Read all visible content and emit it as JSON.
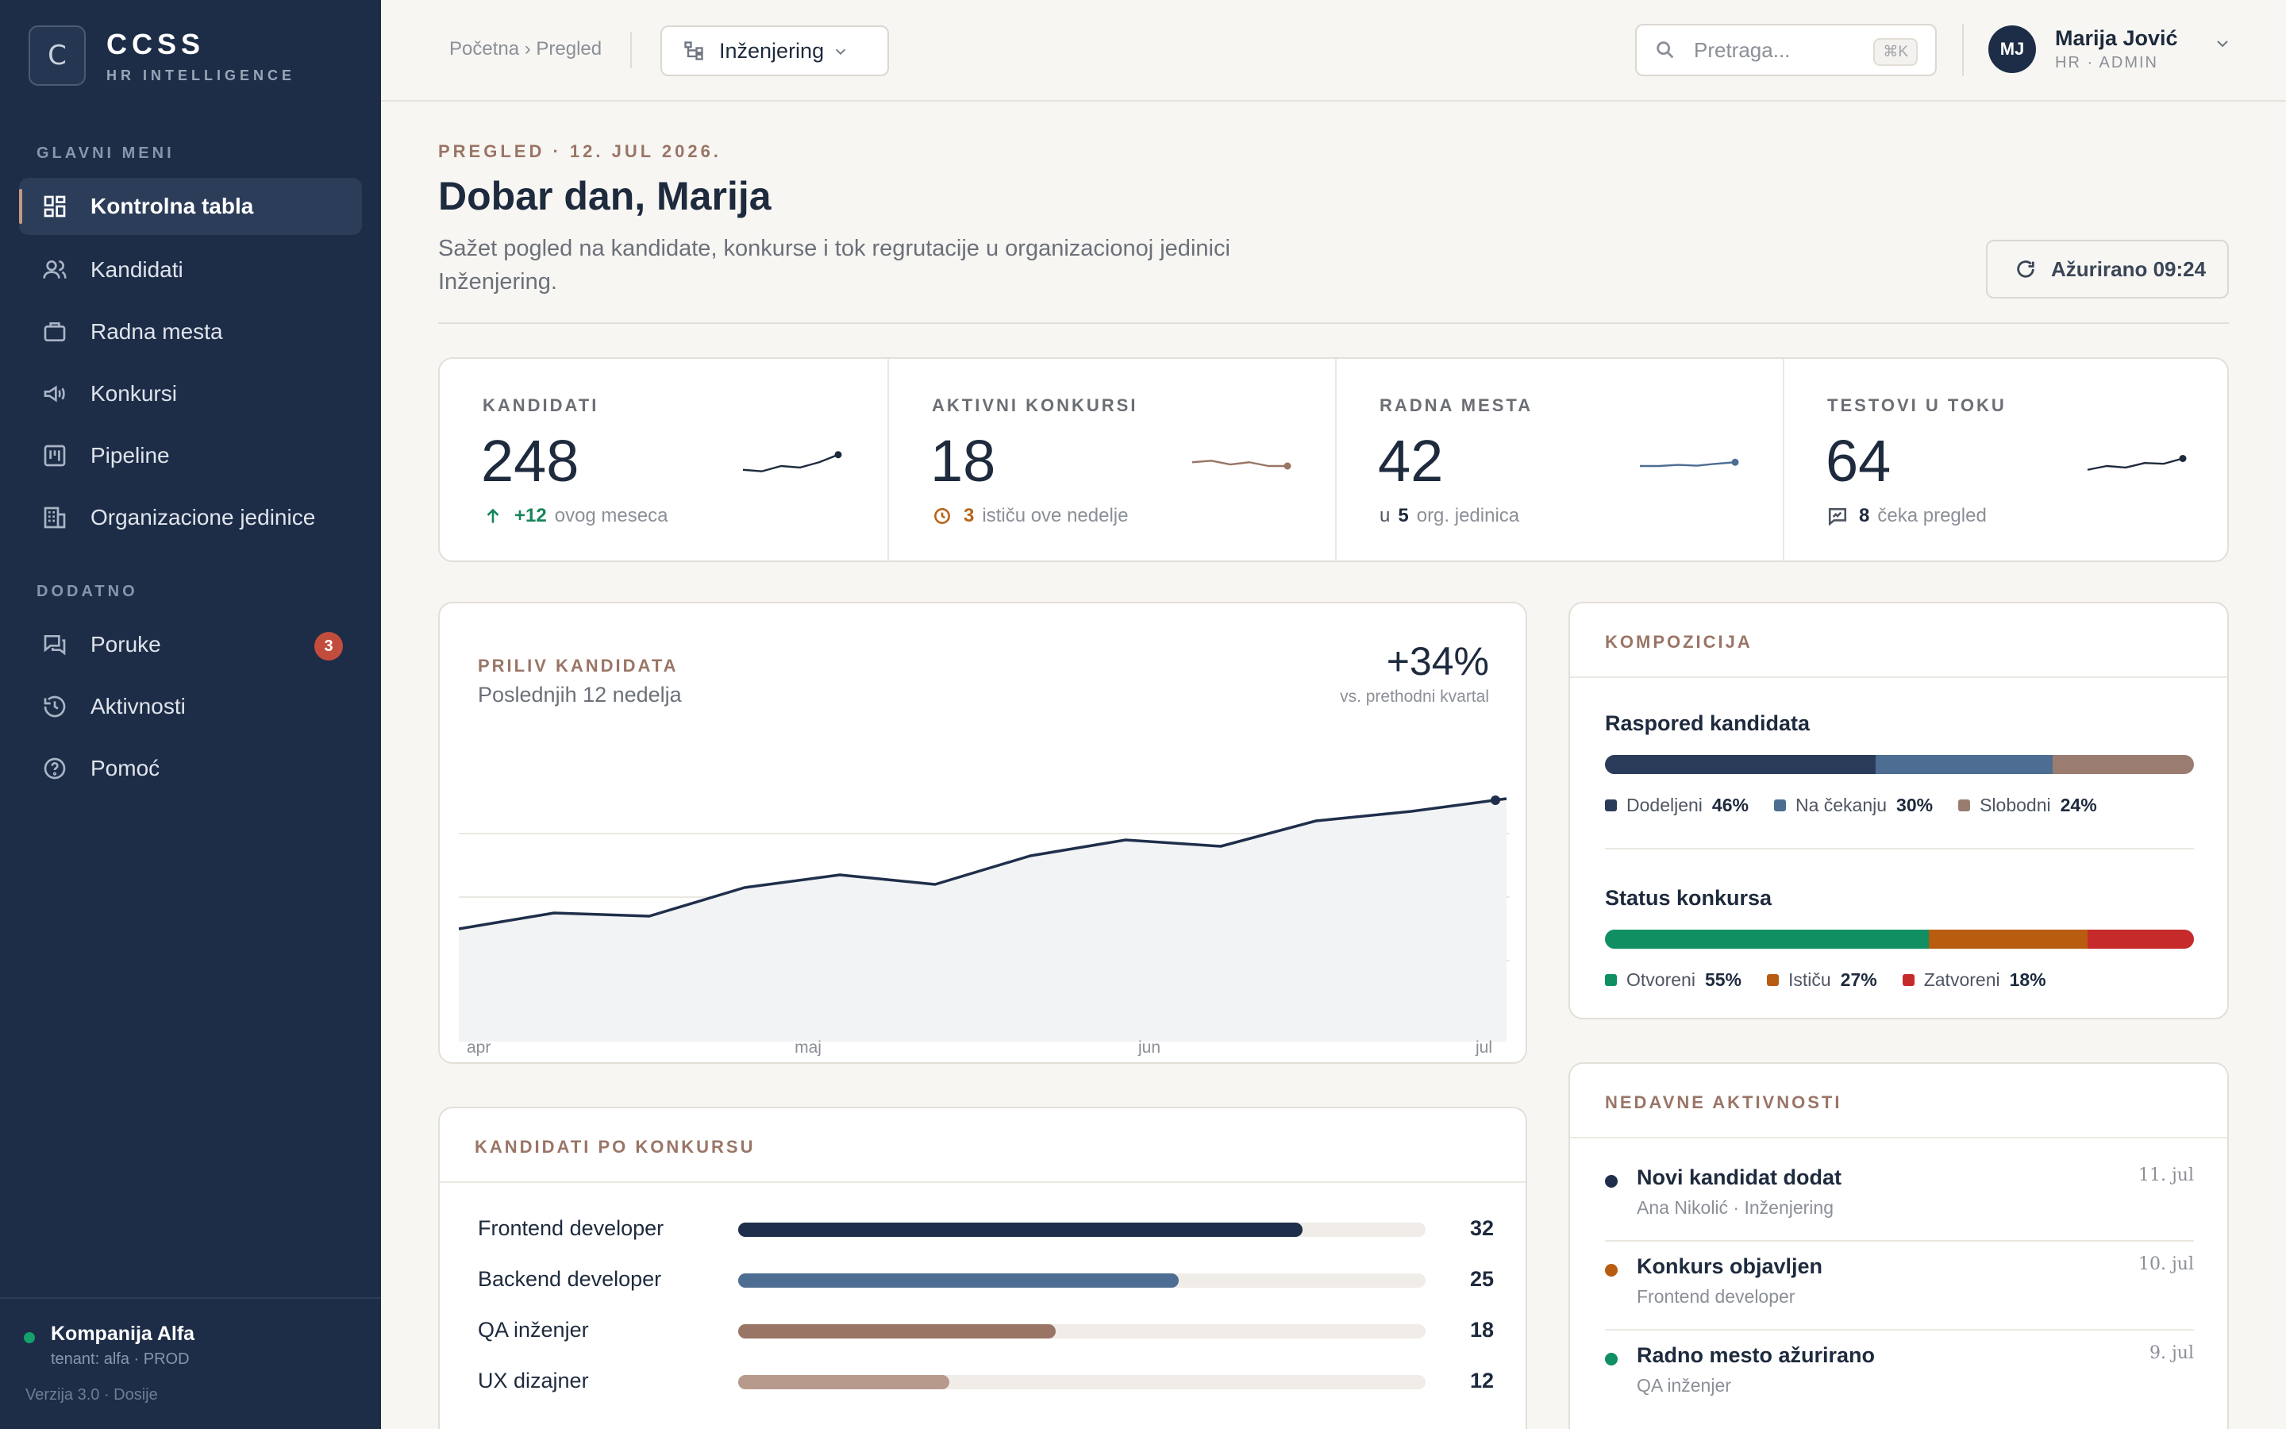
{
  "brand": {
    "mark": "C",
    "name": "CCSS",
    "sub": "HR INTELLIGENCE"
  },
  "sidebar": {
    "main_label": "GLAVNI MENI",
    "main_items": [
      {
        "label": "Kontrolna tabla",
        "icon": "grid-icon"
      },
      {
        "label": "Kandidati",
        "icon": "users-icon"
      },
      {
        "label": "Radna mesta",
        "icon": "briefcase-icon"
      },
      {
        "label": "Konkursi",
        "icon": "megaphone-icon"
      },
      {
        "label": "Pipeline",
        "icon": "kanban-icon"
      },
      {
        "label": "Organizacione jedinice",
        "icon": "building-icon"
      }
    ],
    "extra_label": "DODATNO",
    "extra_items": [
      {
        "label": "Poruke",
        "icon": "chat-icon",
        "badge": "3"
      },
      {
        "label": "Aktivnosti",
        "icon": "history-icon"
      },
      {
        "label": "Pomoć",
        "icon": "help-icon"
      }
    ],
    "tenant_name": "Kompanija Alfa",
    "tenant_sub": "tenant: alfa · PROD",
    "version": "Verzija 3.0 · Dosije"
  },
  "topbar": {
    "breadcrumb": "Početna › Pregled",
    "unit": "Inženjering",
    "search_placeholder": "Pretraga...",
    "search_kbd": "⌘K",
    "user_initials": "MJ",
    "user_name": "Marija Jović",
    "user_role": "HR · ADMIN"
  },
  "header": {
    "eyebrow": "PREGLED · 12. JUL 2026.",
    "greeting": "Dobar dan, Marija",
    "description": "Sažet pogled na kandidate, konkurse i tok regrutacije u organizacionoj jedinici Inženjering.",
    "updated": "Ažurirano 09:24"
  },
  "stats": [
    {
      "label": "KANDIDATI",
      "value": "248",
      "sub_value": "+12",
      "sub_text": "ovog meseca",
      "sub_color": "#16865a",
      "spark_color": "#1e2a3d",
      "spark": [
        3,
        2.6,
        4,
        3.6,
        5,
        7
      ]
    },
    {
      "label": "AKTIVNI KONKURSI",
      "value": "18",
      "sub_value": "3",
      "sub_text": "ističu ove nedelje",
      "sub_color": "#b86418",
      "spark_color": "#9a7566",
      "spark": [
        5,
        5.4,
        4.4,
        5,
        4,
        4
      ]
    },
    {
      "label": "RADNA MESTA",
      "value": "42",
      "sub_prefix": "u",
      "sub_value": "5",
      "sub_text": "org. jedinica",
      "sub_color": "#1e2a3d",
      "spark_color": "#4d6d92",
      "spark": [
        4,
        4,
        4.3,
        4.1,
        4.6,
        5
      ]
    },
    {
      "label": "TESTOVI U TOKU",
      "value": "64",
      "sub_value": "8",
      "sub_text": "čeka pregled",
      "sub_color": "#1e2a3d",
      "spark_color": "#1e2a3d",
      "spark": [
        3,
        4,
        3.6,
        4.8,
        4.6,
        6
      ]
    }
  ],
  "inflow": {
    "label": "PRILIV KANDIDATA",
    "subtitle": "Poslednjih 12 nedelja",
    "change": "+34%",
    "change_caption": "vs. prethodni kvartal"
  },
  "chart_data": {
    "type": "area",
    "title": "PRILIV KANDIDATA",
    "subtitle": "Poslednjih 12 nedelja",
    "x_ticks": [
      "apr",
      "maj",
      "jun",
      "jul"
    ],
    "values": [
      30,
      35,
      34,
      43,
      47,
      44,
      53,
      58,
      56,
      64,
      67,
      71
    ],
    "ylim": [
      0,
      80
    ],
    "grid": true
  },
  "by_contest": {
    "label": "KANDIDATI PO KONKURSU",
    "max": 39,
    "rows": [
      {
        "name": "Frontend developer",
        "value": 32,
        "color": "#1f2f4b"
      },
      {
        "name": "Backend developer",
        "value": 25,
        "color": "#4d6d92"
      },
      {
        "name": "QA inženjer",
        "value": 18,
        "color": "#9a7566"
      },
      {
        "name": "UX dizajner",
        "value": 12,
        "color": "#b79a8c"
      }
    ]
  },
  "composition": {
    "label": "KOMPOZICIJA",
    "blocks": [
      {
        "title": "Raspored kandidata",
        "segments": [
          {
            "name": "Dodeljeni",
            "pct": 46,
            "pct_label": "46%",
            "color": "#2b3c5a"
          },
          {
            "name": "Na čekanju",
            "pct": 30,
            "pct_label": "30%",
            "color": "#4d6d92"
          },
          {
            "name": "Slobodni",
            "pct": 24,
            "pct_label": "24%",
            "color": "#9a7d70"
          }
        ]
      },
      {
        "title": "Status konkursa",
        "segments": [
          {
            "name": "Otvoreni",
            "pct": 55,
            "pct_label": "55%",
            "color": "#0f8f62"
          },
          {
            "name": "Ističu",
            "pct": 27,
            "pct_label": "27%",
            "color": "#b85c10"
          },
          {
            "name": "Zatvoreni",
            "pct": 18,
            "pct_label": "18%",
            "color": "#c62a2a"
          }
        ]
      }
    ]
  },
  "activity": {
    "label": "NEDAVNE AKTIVNOSTI",
    "items": [
      {
        "title": "Novi kandidat dodat",
        "sub": "Ana Nikolić · Inženjering",
        "date": "11. jul",
        "color": "#1f2f4b"
      },
      {
        "title": "Konkurs objavljen",
        "sub": "Frontend developer",
        "date": "10. jul",
        "color": "#b85c10"
      },
      {
        "title": "Radno mesto ažurirano",
        "sub": "QA inženjer",
        "date": "9. jul",
        "color": "#0f8f62"
      }
    ]
  }
}
